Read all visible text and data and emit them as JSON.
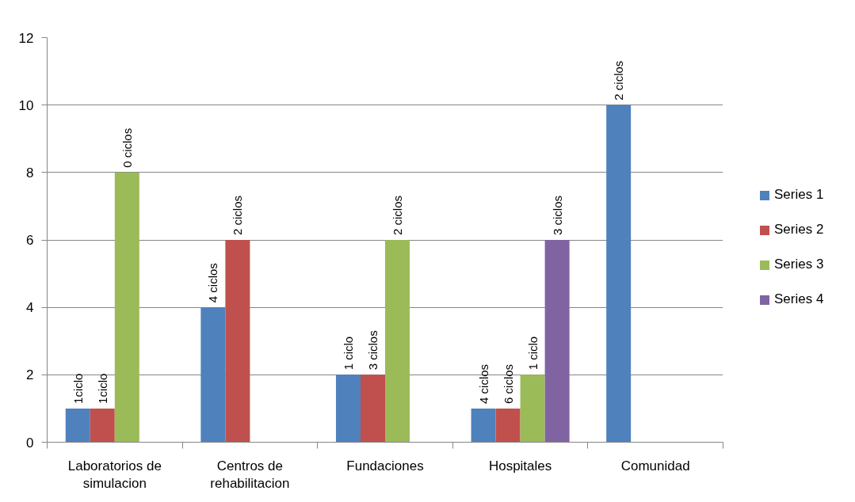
{
  "chart_data": {
    "type": "bar",
    "categories": [
      "Laboratorios de simulacion",
      "Centros de rehabilitacion",
      "Fundaciones",
      "Hospitales",
      "Comunidad"
    ],
    "series": [
      {
        "name": "Series 1",
        "color": "#4f81bd",
        "values": [
          1,
          4,
          2,
          1,
          10
        ]
      },
      {
        "name": "Series 2",
        "color": "#c0504d",
        "values": [
          1,
          6,
          2,
          1,
          null
        ]
      },
      {
        "name": "Series 3",
        "color": "#9bbb59",
        "values": [
          8,
          null,
          6,
          2,
          null
        ]
      },
      {
        "name": "Series 4",
        "color": "#8064a2",
        "values": [
          null,
          null,
          null,
          6,
          null
        ]
      }
    ],
    "annotations": [
      {
        "text": "1ciclo",
        "x": "Laboratorios de simulacion",
        "y": 1
      },
      {
        "text": "1ciclo",
        "x": "Laboratorios de simulacion",
        "y": 1
      },
      {
        "text": "0 ciclos",
        "x": "Laboratorios de simulacion",
        "y": 8
      },
      {
        "text": "4 ciclos",
        "x": "Centros de rehabilitacion",
        "y": 4
      },
      {
        "text": "2 ciclos",
        "x": "Centros de rehabilitacion",
        "y": 6
      },
      {
        "text": "1 ciclo",
        "x": "Fundaciones",
        "y": 2
      },
      {
        "text": "3 ciclos",
        "x": "Fundaciones",
        "y": 2
      },
      {
        "text": "2 ciclos",
        "x": "Fundaciones",
        "y": 6
      },
      {
        "text": "4 ciclos",
        "x": "Hospitales",
        "y": 1
      },
      {
        "text": "6 ciclos",
        "x": "Hospitales",
        "y": 1
      },
      {
        "text": "1 ciclo",
        "x": "Hospitales",
        "y": 2
      },
      "3 ciclos",
      "2 ciclos"
    ],
    "ylim": [
      0,
      12
    ],
    "yticks": [
      0,
      2,
      4,
      6,
      8,
      10,
      12
    ],
    "grid": "y",
    "legend": "right"
  }
}
